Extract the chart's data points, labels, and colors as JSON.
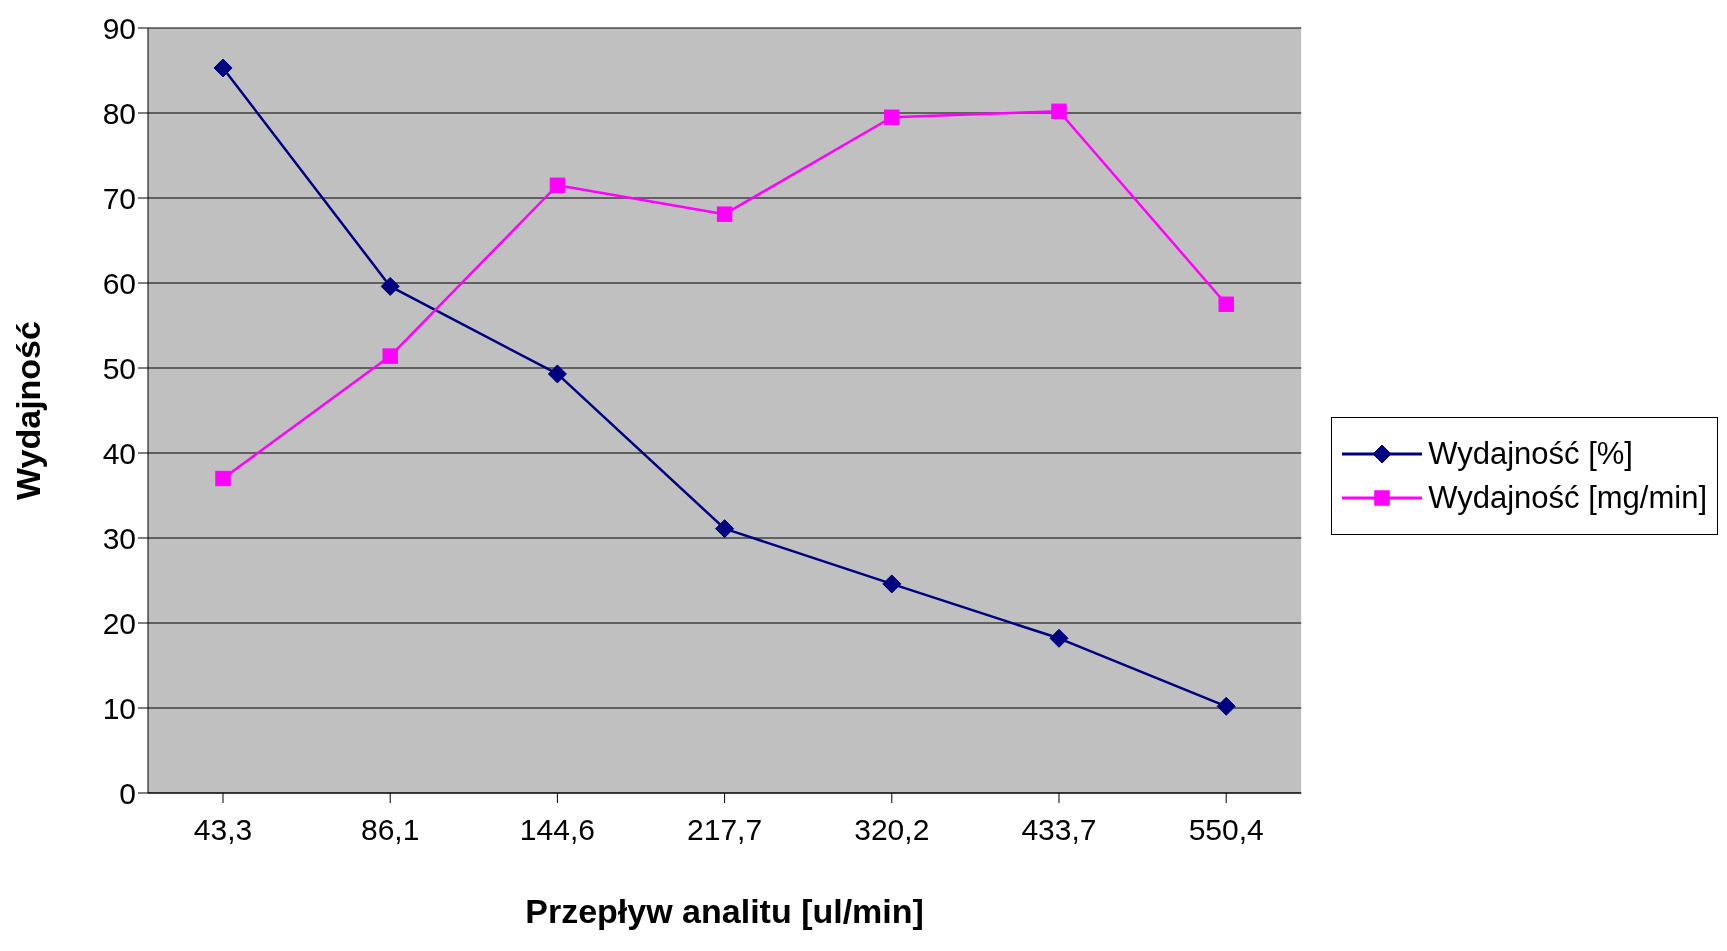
{
  "chart_data": {
    "type": "line",
    "xlabel": "Przepływ analitu [ul/min]",
    "ylabel": "Wydajność",
    "categories": [
      "43,3",
      "86,1",
      "144,6",
      "217,7",
      "320,2",
      "433,7",
      "550,4"
    ],
    "series": [
      {
        "name": "Wydajność [%]",
        "color": "#000080",
        "marker": "diamond",
        "values": [
          85.3,
          59.6,
          49.3,
          31.1,
          24.6,
          18.2,
          10.2
        ]
      },
      {
        "name": "Wydajność [mg/min]",
        "color": "#ff00ff",
        "marker": "square",
        "values": [
          37.0,
          51.4,
          71.5,
          68.1,
          79.5,
          80.2,
          57.5
        ]
      }
    ],
    "ylim": [
      0,
      90
    ],
    "yticks": [
      0,
      10,
      20,
      30,
      40,
      50,
      60,
      70,
      80,
      90
    ],
    "grid": "y",
    "legend": "right",
    "line_style": "solid"
  }
}
